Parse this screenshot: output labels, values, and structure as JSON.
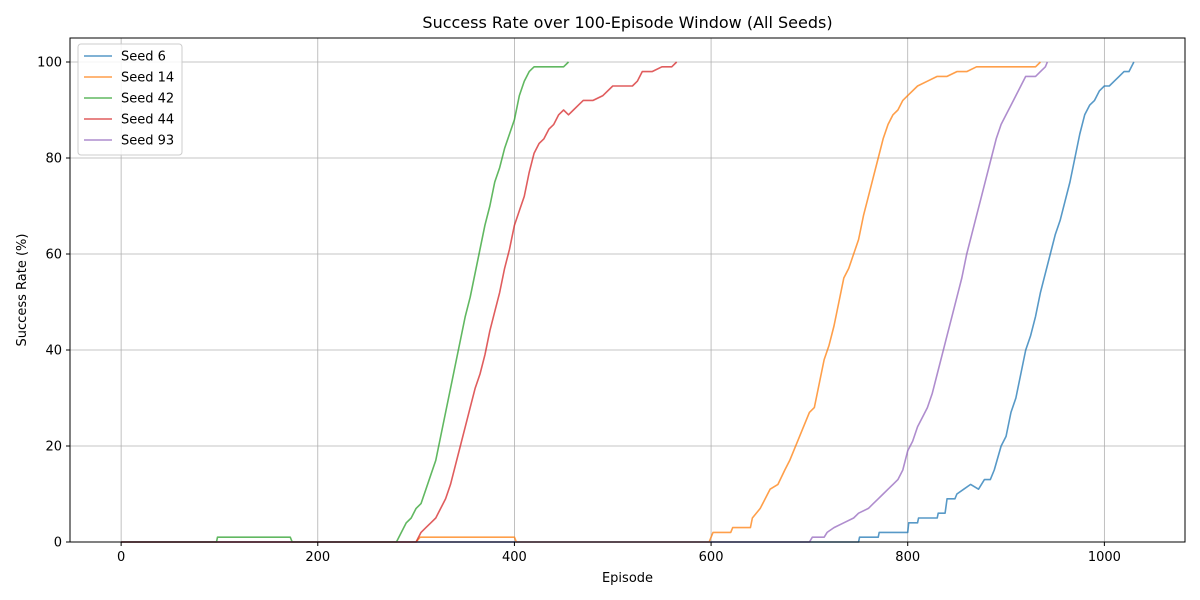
{
  "chart_data": {
    "type": "line",
    "title": "Success Rate over 100-Episode Window (All Seeds)",
    "xlabel": "Episode",
    "ylabel": "Success Rate (%)",
    "xlim": [
      -52,
      1082
    ],
    "ylim": [
      0,
      105
    ],
    "xticks": [
      0,
      200,
      400,
      600,
      800,
      1000
    ],
    "yticks": [
      0,
      20,
      40,
      60,
      80,
      100
    ],
    "grid": true,
    "legend_position": "top-left",
    "series": [
      {
        "name": "Seed 6",
        "color": "#1f77b4",
        "points": [
          [
            0,
            0
          ],
          [
            150,
            0
          ],
          [
            700,
            0
          ],
          [
            750,
            0
          ],
          [
            751,
            1
          ],
          [
            770,
            1
          ],
          [
            771,
            2
          ],
          [
            800,
            2
          ],
          [
            801,
            4
          ],
          [
            810,
            4
          ],
          [
            811,
            5
          ],
          [
            830,
            5
          ],
          [
            831,
            6
          ],
          [
            838,
            6
          ],
          [
            840,
            9
          ],
          [
            848,
            9
          ],
          [
            850,
            10
          ],
          [
            857,
            11
          ],
          [
            864,
            12
          ],
          [
            872,
            11
          ],
          [
            878,
            13
          ],
          [
            884,
            13
          ],
          [
            888,
            15
          ],
          [
            895,
            20
          ],
          [
            900,
            22
          ],
          [
            905,
            27
          ],
          [
            910,
            30
          ],
          [
            915,
            35
          ],
          [
            920,
            40
          ],
          [
            925,
            43
          ],
          [
            930,
            47
          ],
          [
            935,
            52
          ],
          [
            940,
            56
          ],
          [
            945,
            60
          ],
          [
            950,
            64
          ],
          [
            955,
            67
          ],
          [
            960,
            71
          ],
          [
            965,
            75
          ],
          [
            970,
            80
          ],
          [
            975,
            85
          ],
          [
            980,
            89
          ],
          [
            985,
            91
          ],
          [
            990,
            92
          ],
          [
            995,
            94
          ],
          [
            1000,
            95
          ],
          [
            1005,
            95
          ],
          [
            1010,
            96
          ],
          [
            1015,
            97
          ],
          [
            1020,
            98
          ],
          [
            1025,
            98
          ],
          [
            1030,
            100
          ]
        ]
      },
      {
        "name": "Seed 14",
        "color": "#ff7f0e",
        "points": [
          [
            0,
            0
          ],
          [
            300,
            0
          ],
          [
            304,
            1
          ],
          [
            400,
            1
          ],
          [
            402,
            0
          ],
          [
            598,
            0
          ],
          [
            602,
            2
          ],
          [
            620,
            2
          ],
          [
            622,
            3
          ],
          [
            640,
            3
          ],
          [
            642,
            5
          ],
          [
            650,
            7
          ],
          [
            660,
            11
          ],
          [
            668,
            12
          ],
          [
            675,
            15
          ],
          [
            680,
            17
          ],
          [
            690,
            22
          ],
          [
            700,
            27
          ],
          [
            705,
            28
          ],
          [
            710,
            33
          ],
          [
            715,
            38
          ],
          [
            720,
            41
          ],
          [
            725,
            45
          ],
          [
            730,
            50
          ],
          [
            735,
            55
          ],
          [
            740,
            57
          ],
          [
            745,
            60
          ],
          [
            750,
            63
          ],
          [
            755,
            68
          ],
          [
            760,
            72
          ],
          [
            765,
            76
          ],
          [
            770,
            80
          ],
          [
            775,
            84
          ],
          [
            780,
            87
          ],
          [
            785,
            89
          ],
          [
            790,
            90
          ],
          [
            795,
            92
          ],
          [
            800,
            93
          ],
          [
            810,
            95
          ],
          [
            820,
            96
          ],
          [
            830,
            97
          ],
          [
            840,
            97
          ],
          [
            850,
            98
          ],
          [
            860,
            98
          ],
          [
            870,
            99
          ],
          [
            900,
            99
          ],
          [
            930,
            99
          ],
          [
            935,
            100
          ]
        ]
      },
      {
        "name": "Seed 42",
        "color": "#2ca02c",
        "points": [
          [
            0,
            0
          ],
          [
            97,
            0
          ],
          [
            98,
            1
          ],
          [
            172,
            1
          ],
          [
            174,
            0
          ],
          [
            280,
            0
          ],
          [
            285,
            2
          ],
          [
            290,
            4
          ],
          [
            295,
            5
          ],
          [
            300,
            7
          ],
          [
            305,
            8
          ],
          [
            310,
            11
          ],
          [
            315,
            14
          ],
          [
            320,
            17
          ],
          [
            325,
            22
          ],
          [
            330,
            27
          ],
          [
            335,
            32
          ],
          [
            340,
            37
          ],
          [
            345,
            42
          ],
          [
            350,
            47
          ],
          [
            355,
            51
          ],
          [
            360,
            56
          ],
          [
            365,
            61
          ],
          [
            370,
            66
          ],
          [
            375,
            70
          ],
          [
            380,
            75
          ],
          [
            385,
            78
          ],
          [
            390,
            82
          ],
          [
            395,
            85
          ],
          [
            400,
            88
          ],
          [
            405,
            93
          ],
          [
            410,
            96
          ],
          [
            415,
            98
          ],
          [
            420,
            99
          ],
          [
            430,
            99
          ],
          [
            440,
            99
          ],
          [
            450,
            99
          ],
          [
            455,
            100
          ]
        ]
      },
      {
        "name": "Seed 44",
        "color": "#d62728",
        "points": [
          [
            0,
            0
          ],
          [
            300,
            0
          ],
          [
            305,
            2
          ],
          [
            310,
            3
          ],
          [
            315,
            4
          ],
          [
            320,
            5
          ],
          [
            325,
            7
          ],
          [
            330,
            9
          ],
          [
            335,
            12
          ],
          [
            340,
            16
          ],
          [
            345,
            20
          ],
          [
            350,
            24
          ],
          [
            355,
            28
          ],
          [
            360,
            32
          ],
          [
            365,
            35
          ],
          [
            370,
            39
          ],
          [
            375,
            44
          ],
          [
            380,
            48
          ],
          [
            385,
            52
          ],
          [
            390,
            57
          ],
          [
            395,
            61
          ],
          [
            400,
            66
          ],
          [
            405,
            69
          ],
          [
            410,
            72
          ],
          [
            415,
            77
          ],
          [
            420,
            81
          ],
          [
            425,
            83
          ],
          [
            430,
            84
          ],
          [
            435,
            86
          ],
          [
            440,
            87
          ],
          [
            445,
            89
          ],
          [
            450,
            90
          ],
          [
            455,
            89
          ],
          [
            460,
            90
          ],
          [
            465,
            91
          ],
          [
            470,
            92
          ],
          [
            480,
            92
          ],
          [
            490,
            93
          ],
          [
            500,
            95
          ],
          [
            510,
            95
          ],
          [
            520,
            95
          ],
          [
            525,
            96
          ],
          [
            530,
            98
          ],
          [
            540,
            98
          ],
          [
            550,
            99
          ],
          [
            560,
            99
          ],
          [
            565,
            100
          ]
        ]
      },
      {
        "name": "Seed 93",
        "color": "#9467bd",
        "points": [
          [
            0,
            0
          ],
          [
            700,
            0
          ],
          [
            703,
            1
          ],
          [
            715,
            1
          ],
          [
            718,
            2
          ],
          [
            725,
            3
          ],
          [
            735,
            4
          ],
          [
            745,
            5
          ],
          [
            750,
            6
          ],
          [
            760,
            7
          ],
          [
            765,
            8
          ],
          [
            770,
            9
          ],
          [
            775,
            10
          ],
          [
            780,
            11
          ],
          [
            785,
            12
          ],
          [
            790,
            13
          ],
          [
            795,
            15
          ],
          [
            800,
            19
          ],
          [
            805,
            21
          ],
          [
            810,
            24
          ],
          [
            815,
            26
          ],
          [
            820,
            28
          ],
          [
            825,
            31
          ],
          [
            830,
            35
          ],
          [
            835,
            39
          ],
          [
            840,
            43
          ],
          [
            845,
            47
          ],
          [
            850,
            51
          ],
          [
            855,
            55
          ],
          [
            860,
            60
          ],
          [
            865,
            64
          ],
          [
            870,
            68
          ],
          [
            875,
            72
          ],
          [
            880,
            76
          ],
          [
            885,
            80
          ],
          [
            890,
            84
          ],
          [
            895,
            87
          ],
          [
            900,
            89
          ],
          [
            905,
            91
          ],
          [
            910,
            93
          ],
          [
            915,
            95
          ],
          [
            920,
            97
          ],
          [
            925,
            97
          ],
          [
            930,
            97
          ],
          [
            935,
            98
          ],
          [
            940,
            99
          ],
          [
            942,
            100
          ]
        ]
      }
    ]
  }
}
